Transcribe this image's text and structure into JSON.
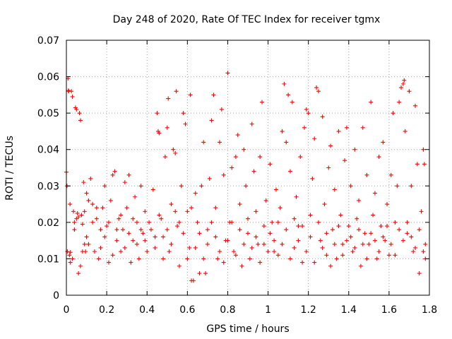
{
  "chart_data": {
    "type": "scatter",
    "title": "Day 248 of 2020, Rate Of TEC Index for receiver tgmx",
    "xlabel": "GPS time / hours",
    "ylabel": "ROTI / TECUs",
    "xlim": [
      0,
      1.8
    ],
    "ylim": [
      0,
      0.07
    ],
    "x_ticks": [
      "0",
      "0.2",
      "0.4",
      "0.6",
      "0.8",
      "1",
      "1.2",
      "1.4",
      "1.6",
      "1.8"
    ],
    "y_ticks": [
      "0",
      "0.01",
      "0.02",
      "0.03",
      "0.04",
      "0.05",
      "0.06",
      "0.07"
    ],
    "grid": true,
    "marker": "+",
    "color": "#ff0000",
    "series": [
      {
        "points": [
          [
            0.0,
            0.0338
          ],
          [
            0.003,
            0.03
          ],
          [
            0.005,
            0.012
          ],
          [
            0.008,
            0.0595
          ],
          [
            0.01,
            0.0562
          ],
          [
            0.012,
            0.056
          ],
          [
            0.015,
            0.011
          ],
          [
            0.018,
            0.025
          ],
          [
            0.02,
            0.0118
          ],
          [
            0.025,
            0.056
          ],
          [
            0.03,
            0.0545
          ],
          [
            0.035,
            0.023
          ],
          [
            0.04,
            0.02
          ],
          [
            0.045,
            0.0515
          ],
          [
            0.05,
            0.051
          ],
          [
            0.055,
            0.0225
          ],
          [
            0.06,
            0.0215
          ],
          [
            0.065,
            0.05
          ],
          [
            0.07,
            0.048
          ],
          [
            0.075,
            0.022
          ],
          [
            0.08,
            0.0195
          ],
          [
            0.085,
            0.031
          ],
          [
            0.09,
            0.014
          ],
          [
            0.095,
            0.012
          ],
          [
            0.1,
            0.028
          ],
          [
            0.02,
            0.009
          ],
          [
            0.03,
            0.01
          ],
          [
            0.04,
            0.018
          ],
          [
            0.05,
            0.021
          ],
          [
            0.06,
            0.006
          ],
          [
            0.07,
            0.008
          ],
          [
            0.08,
            0.012
          ],
          [
            0.09,
            0.023
          ],
          [
            0.1,
            0.016
          ],
          [
            0.11,
            0.026
          ],
          [
            0.12,
            0.032
          ],
          [
            0.13,
            0.025
          ],
          [
            0.14,
            0.012
          ],
          [
            0.15,
            0.021
          ],
          [
            0.16,
            0.01
          ],
          [
            0.17,
            0.018
          ],
          [
            0.18,
            0.024
          ],
          [
            0.19,
            0.03
          ],
          [
            0.2,
            0.019
          ],
          [
            0.21,
            0.009
          ],
          [
            0.22,
            0.026
          ],
          [
            0.23,
            0.033
          ],
          [
            0.24,
            0.034
          ],
          [
            0.25,
            0.015
          ],
          [
            0.26,
            0.021
          ],
          [
            0.27,
            0.012
          ],
          [
            0.28,
            0.018
          ],
          [
            0.29,
            0.031
          ],
          [
            0.3,
            0.024
          ],
          [
            0.31,
            0.033
          ],
          [
            0.32,
            0.009
          ],
          [
            0.33,
            0.015
          ],
          [
            0.34,
            0.027
          ],
          [
            0.35,
            0.02
          ],
          [
            0.36,
            0.01
          ],
          [
            0.37,
            0.03
          ],
          [
            0.38,
            0.017
          ],
          [
            0.39,
            0.023
          ],
          [
            0.4,
            0.012
          ],
          [
            0.11,
            0.014
          ],
          [
            0.13,
            0.02
          ],
          [
            0.15,
            0.024
          ],
          [
            0.17,
            0.013
          ],
          [
            0.19,
            0.016
          ],
          [
            0.21,
            0.02
          ],
          [
            0.23,
            0.011
          ],
          [
            0.25,
            0.018
          ],
          [
            0.27,
            0.022
          ],
          [
            0.29,
            0.013
          ],
          [
            0.31,
            0.017
          ],
          [
            0.33,
            0.021
          ],
          [
            0.35,
            0.014
          ],
          [
            0.37,
            0.018
          ],
          [
            0.39,
            0.015
          ],
          [
            0.41,
            0.02
          ],
          [
            0.42,
            0.018
          ],
          [
            0.43,
            0.029
          ],
          [
            0.44,
            0.013
          ],
          [
            0.45,
            0.05
          ],
          [
            0.455,
            0.045
          ],
          [
            0.46,
            0.0445
          ],
          [
            0.47,
            0.021
          ],
          [
            0.48,
            0.016
          ],
          [
            0.49,
            0.038
          ],
          [
            0.5,
            0.046
          ],
          [
            0.505,
            0.054
          ],
          [
            0.51,
            0.012
          ],
          [
            0.52,
            0.025
          ],
          [
            0.53,
            0.04
          ],
          [
            0.54,
            0.039
          ],
          [
            0.545,
            0.056
          ],
          [
            0.55,
            0.019
          ],
          [
            0.56,
            0.008
          ],
          [
            0.57,
            0.03
          ],
          [
            0.58,
            0.05
          ],
          [
            0.59,
            0.047
          ],
          [
            0.6,
            0.023
          ],
          [
            0.61,
            0.013
          ],
          [
            0.615,
            0.055
          ],
          [
            0.62,
            0.004
          ],
          [
            0.63,
            0.004
          ],
          [
            0.64,
            0.028
          ],
          [
            0.65,
            0.02
          ],
          [
            0.66,
            0.017
          ],
          [
            0.67,
            0.03
          ],
          [
            0.68,
            0.042
          ],
          [
            0.69,
            0.006
          ],
          [
            0.7,
            0.018
          ],
          [
            0.71,
            0.032
          ],
          [
            0.72,
            0.048
          ],
          [
            0.73,
            0.055
          ],
          [
            0.74,
            0.024
          ],
          [
            0.75,
            0.01
          ],
          [
            0.76,
            0.042
          ],
          [
            0.77,
            0.051
          ],
          [
            0.78,
            0.033
          ],
          [
            0.79,
            0.015
          ],
          [
            0.8,
            0.061
          ],
          [
            0.81,
            0.02
          ],
          [
            0.82,
            0.035
          ],
          [
            0.83,
            0.012
          ],
          [
            0.84,
            0.038
          ],
          [
            0.85,
            0.044
          ],
          [
            0.86,
            0.025
          ],
          [
            0.87,
            0.008
          ],
          [
            0.88,
            0.04
          ],
          [
            0.89,
            0.03
          ],
          [
            0.9,
            0.017
          ],
          [
            0.91,
            0.01
          ],
          [
            0.92,
            0.047
          ],
          [
            0.93,
            0.034
          ],
          [
            0.94,
            0.023
          ],
          [
            0.95,
            0.014
          ],
          [
            0.96,
            0.038
          ],
          [
            0.97,
            0.053
          ],
          [
            0.98,
            0.019
          ],
          [
            0.99,
            0.026
          ],
          [
            1.0,
            0.012
          ],
          [
            0.44,
            0.016
          ],
          [
            0.46,
            0.022
          ],
          [
            0.48,
            0.01
          ],
          [
            0.5,
            0.018
          ],
          [
            0.52,
            0.014
          ],
          [
            0.54,
            0.023
          ],
          [
            0.56,
            0.02
          ],
          [
            0.58,
            0.017
          ],
          [
            0.6,
            0.01
          ],
          [
            0.62,
            0.024
          ],
          [
            0.64,
            0.013
          ],
          [
            0.66,
            0.006
          ],
          [
            0.68,
            0.01
          ],
          [
            0.7,
            0.014
          ],
          [
            0.72,
            0.02
          ],
          [
            0.74,
            0.016
          ],
          [
            0.76,
            0.012
          ],
          [
            0.78,
            0.009
          ],
          [
            0.8,
            0.015
          ],
          [
            0.82,
            0.02
          ],
          [
            0.84,
            0.011
          ],
          [
            0.86,
            0.018
          ],
          [
            0.88,
            0.014
          ],
          [
            0.9,
            0.021
          ],
          [
            0.92,
            0.013
          ],
          [
            0.94,
            0.016
          ],
          [
            0.96,
            0.009
          ],
          [
            0.98,
            0.014
          ],
          [
            1.01,
            0.036
          ],
          [
            1.02,
            0.02
          ],
          [
            1.03,
            0.015
          ],
          [
            1.04,
            0.029
          ],
          [
            1.05,
            0.011
          ],
          [
            1.06,
            0.024
          ],
          [
            1.07,
            0.045
          ],
          [
            1.08,
            0.058
          ],
          [
            1.09,
            0.042
          ],
          [
            1.1,
            0.055
          ],
          [
            1.11,
            0.034
          ],
          [
            1.12,
            0.053
          ],
          [
            1.13,
            0.013
          ],
          [
            1.14,
            0.027
          ],
          [
            1.15,
            0.019
          ],
          [
            1.16,
            0.038
          ],
          [
            1.17,
            0.009
          ],
          [
            1.18,
            0.046
          ],
          [
            1.19,
            0.051
          ],
          [
            1.2,
            0.05
          ],
          [
            1.21,
            0.022
          ],
          [
            1.22,
            0.032
          ],
          [
            1.23,
            0.043
          ],
          [
            1.24,
            0.057
          ],
          [
            1.25,
            0.056
          ],
          [
            1.26,
            0.015
          ],
          [
            1.27,
            0.049
          ],
          [
            1.28,
            0.025
          ],
          [
            1.29,
            0.011
          ],
          [
            1.3,
            0.035
          ],
          [
            1.31,
            0.041
          ],
          [
            1.32,
            0.018
          ],
          [
            1.33,
            0.029
          ],
          [
            1.34,
            0.01
          ],
          [
            1.35,
            0.045
          ],
          [
            1.36,
            0.022
          ],
          [
            1.37,
            0.014
          ],
          [
            1.38,
            0.037
          ],
          [
            1.39,
            0.046
          ],
          [
            1.4,
            0.019
          ],
          [
            1.01,
            0.017
          ],
          [
            1.03,
            0.012
          ],
          [
            1.05,
            0.02
          ],
          [
            1.07,
            0.014
          ],
          [
            1.09,
            0.018
          ],
          [
            1.11,
            0.01
          ],
          [
            1.13,
            0.021
          ],
          [
            1.15,
            0.015
          ],
          [
            1.17,
            0.019
          ],
          [
            1.19,
            0.012
          ],
          [
            1.21,
            0.016
          ],
          [
            1.23,
            0.009
          ],
          [
            1.25,
            0.02
          ],
          [
            1.27,
            0.013
          ],
          [
            1.29,
            0.017
          ],
          [
            1.31,
            0.008
          ],
          [
            1.33,
            0.014
          ],
          [
            1.35,
            0.019
          ],
          [
            1.37,
            0.011
          ],
          [
            1.39,
            0.015
          ],
          [
            1.41,
            0.03
          ],
          [
            1.42,
            0.012
          ],
          [
            1.43,
            0.04
          ],
          [
            1.44,
            0.021
          ],
          [
            1.45,
            0.026
          ],
          [
            1.46,
            0.008
          ],
          [
            1.47,
            0.046
          ],
          [
            1.48,
            0.017
          ],
          [
            1.49,
            0.033
          ],
          [
            1.5,
            0.014
          ],
          [
            1.51,
            0.053
          ],
          [
            1.52,
            0.022
          ],
          [
            1.53,
            0.028
          ],
          [
            1.54,
            0.01
          ],
          [
            1.55,
            0.038
          ],
          [
            1.56,
            0.019
          ],
          [
            1.57,
            0.042
          ],
          [
            1.58,
            0.015
          ],
          [
            1.59,
            0.025
          ],
          [
            1.6,
            0.011
          ],
          [
            1.61,
            0.033
          ],
          [
            1.62,
            0.05
          ],
          [
            1.63,
            0.02
          ],
          [
            1.64,
            0.03
          ],
          [
            1.65,
            0.053
          ],
          [
            1.66,
            0.057
          ],
          [
            1.67,
            0.058
          ],
          [
            1.675,
            0.059
          ],
          [
            1.68,
            0.045
          ],
          [
            1.69,
            0.017
          ],
          [
            1.7,
            0.056
          ],
          [
            1.71,
            0.03
          ],
          [
            1.72,
            0.012
          ],
          [
            1.73,
            0.052
          ],
          [
            1.74,
            0.036
          ],
          [
            1.75,
            0.006
          ],
          [
            1.76,
            0.023
          ],
          [
            1.77,
            0.04
          ],
          [
            1.775,
            0.036
          ],
          [
            1.78,
            0.01
          ],
          [
            1.41,
            0.016
          ],
          [
            1.43,
            0.013
          ],
          [
            1.45,
            0.018
          ],
          [
            1.47,
            0.014
          ],
          [
            1.49,
            0.01
          ],
          [
            1.51,
            0.017
          ],
          [
            1.53,
            0.015
          ],
          [
            1.55,
            0.012
          ],
          [
            1.57,
            0.016
          ],
          [
            1.59,
            0.019
          ],
          [
            1.61,
            0.014
          ],
          [
            1.63,
            0.011
          ],
          [
            1.65,
            0.018
          ],
          [
            1.67,
            0.015
          ],
          [
            1.69,
            0.02
          ],
          [
            1.71,
            0.016
          ],
          [
            1.73,
            0.013
          ],
          [
            1.75,
            0.018
          ],
          [
            1.77,
            0.012
          ],
          [
            1.78,
            0.014
          ]
        ]
      }
    ]
  }
}
